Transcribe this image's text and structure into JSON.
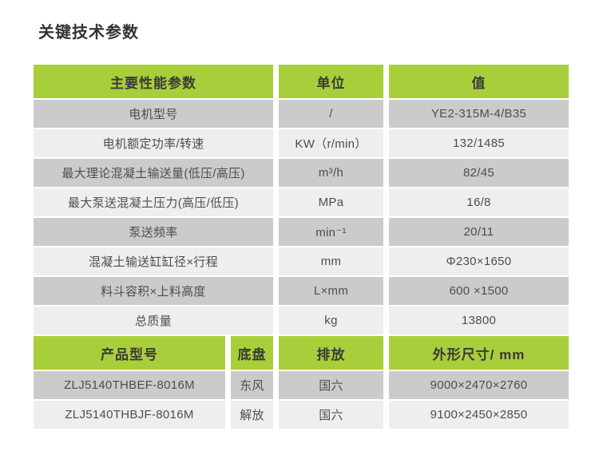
{
  "title": "关键技术参数",
  "colors": {
    "header_green": "#a9ce3b",
    "row_dark": "#cbcbcb",
    "row_light": "#eeeeee",
    "header_text": "#3a3a3a",
    "cell_text": "#4d4d4d"
  },
  "performance_table": {
    "headers": {
      "param": "主要性能参数",
      "unit": "单位",
      "value": "值"
    },
    "rows": [
      {
        "param": "电机型号",
        "unit": "/",
        "value": "YE2-315M-4/B35"
      },
      {
        "param": "电机额定功率/转速",
        "unit": "KW（r/min）",
        "value": "132/1485"
      },
      {
        "param": "最大理论混凝土输送量(低压/高压)",
        "unit": "m³/h",
        "value": "82/45"
      },
      {
        "param": "最大泵送混凝土压力(高压/低压)",
        "unit": "MPa",
        "value": "16/8"
      },
      {
        "param": "泵送频率",
        "unit": "min⁻¹",
        "value": "20/11"
      },
      {
        "param": "混凝土输送缸缸径×行程",
        "unit": "mm",
        "value": "Φ230×1650"
      },
      {
        "param": "料斗容积×上料高度",
        "unit": "L×mm",
        "value": "600 ×1500"
      },
      {
        "param": "总质量",
        "unit": "kg",
        "value": "13800"
      }
    ]
  },
  "product_table": {
    "headers": {
      "model": "产品型号",
      "chassis": "底盘",
      "emission": "排放",
      "dimensions": "外形尺寸/ mm"
    },
    "rows": [
      {
        "model": "ZLJ5140THBEF-8016M",
        "chassis": "东风",
        "emission": "国六",
        "dimensions": "9000×2470×2760"
      },
      {
        "model": "ZLJ5140THBJF-8016M",
        "chassis": "解放",
        "emission": "国六",
        "dimensions": "9100×2450×2850"
      }
    ]
  }
}
